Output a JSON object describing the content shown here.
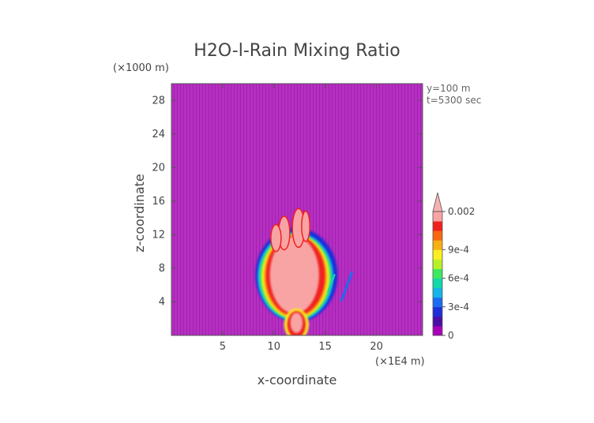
{
  "chart_data": {
    "type": "heatmap",
    "title": "H2O-l-Rain Mixing Ratio",
    "xlabel": "x-coordinate",
    "ylabel": "z-coordinate",
    "x_units": "(×1E4 m)",
    "y_units": "(×1000 m)",
    "info_lines": [
      "y=100 m",
      "t=5300 sec"
    ],
    "xlim": [
      0,
      24.5
    ],
    "ylim": [
      0,
      30
    ],
    "xticks": [
      5,
      10,
      15,
      20
    ],
    "yticks": [
      4,
      8,
      12,
      16,
      20,
      24,
      28
    ],
    "colorbar": {
      "labels": [
        "0",
        "3e-4",
        "6e-4",
        "9e-4",
        "0.002"
      ],
      "label_values": [
        0,
        0.0003,
        0.0006,
        0.0009,
        0.002
      ],
      "levels": [
        0,
        0.0001,
        0.0002,
        0.0003,
        0.0004,
        0.0005,
        0.0006,
        0.0007,
        0.0008,
        0.0009,
        0.001,
        0.0015,
        0.002
      ],
      "colors": [
        "#a800b8",
        "#4b0fa8",
        "#1f2fd8",
        "#1a6cf0",
        "#14b4e8",
        "#10d8a8",
        "#3ce860",
        "#b8f028",
        "#f8f020",
        "#f8b010",
        "#f86810",
        "#f02020",
        "#f8a4a4"
      ],
      "over_color": "#f8b0b0"
    },
    "background_color": "#b62fc2",
    "field_description": "rain water mixing ratio, max ~0.002 in central core near x=12.5, z=1-14",
    "grid": false
  }
}
